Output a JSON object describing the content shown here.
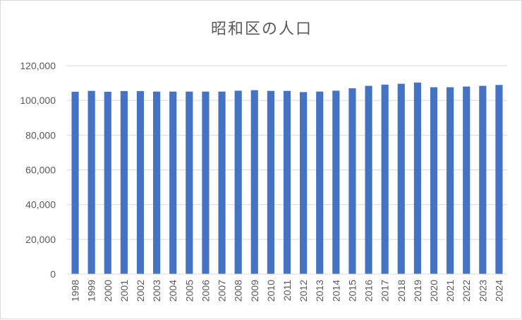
{
  "chart_data": {
    "type": "bar",
    "title": "昭和区の人口",
    "xlabel": "",
    "ylabel": "",
    "ylim": [
      0,
      120000
    ],
    "yticks": [
      "0",
      "20,000",
      "40,000",
      "60,000",
      "80,000",
      "100,000",
      "120,000"
    ],
    "grid": true,
    "legend": "none",
    "bar_color": "#4472c4",
    "categories": [
      "1998",
      "1999",
      "2000",
      "2001",
      "2002",
      "2003",
      "2004",
      "2005",
      "2006",
      "2007",
      "2008",
      "2009",
      "2010",
      "2011",
      "2012",
      "2013",
      "2014",
      "2015",
      "2016",
      "2017",
      "2018",
      "2019",
      "2020",
      "2021",
      "2022",
      "2023",
      "2024"
    ],
    "values": [
      105000,
      105500,
      105000,
      105400,
      105400,
      105100,
      105100,
      105100,
      105100,
      105100,
      105600,
      105900,
      105500,
      105500,
      104800,
      105100,
      105600,
      107000,
      108400,
      109100,
      109600,
      110300,
      107600,
      107600,
      108000,
      108400,
      108900
    ]
  }
}
